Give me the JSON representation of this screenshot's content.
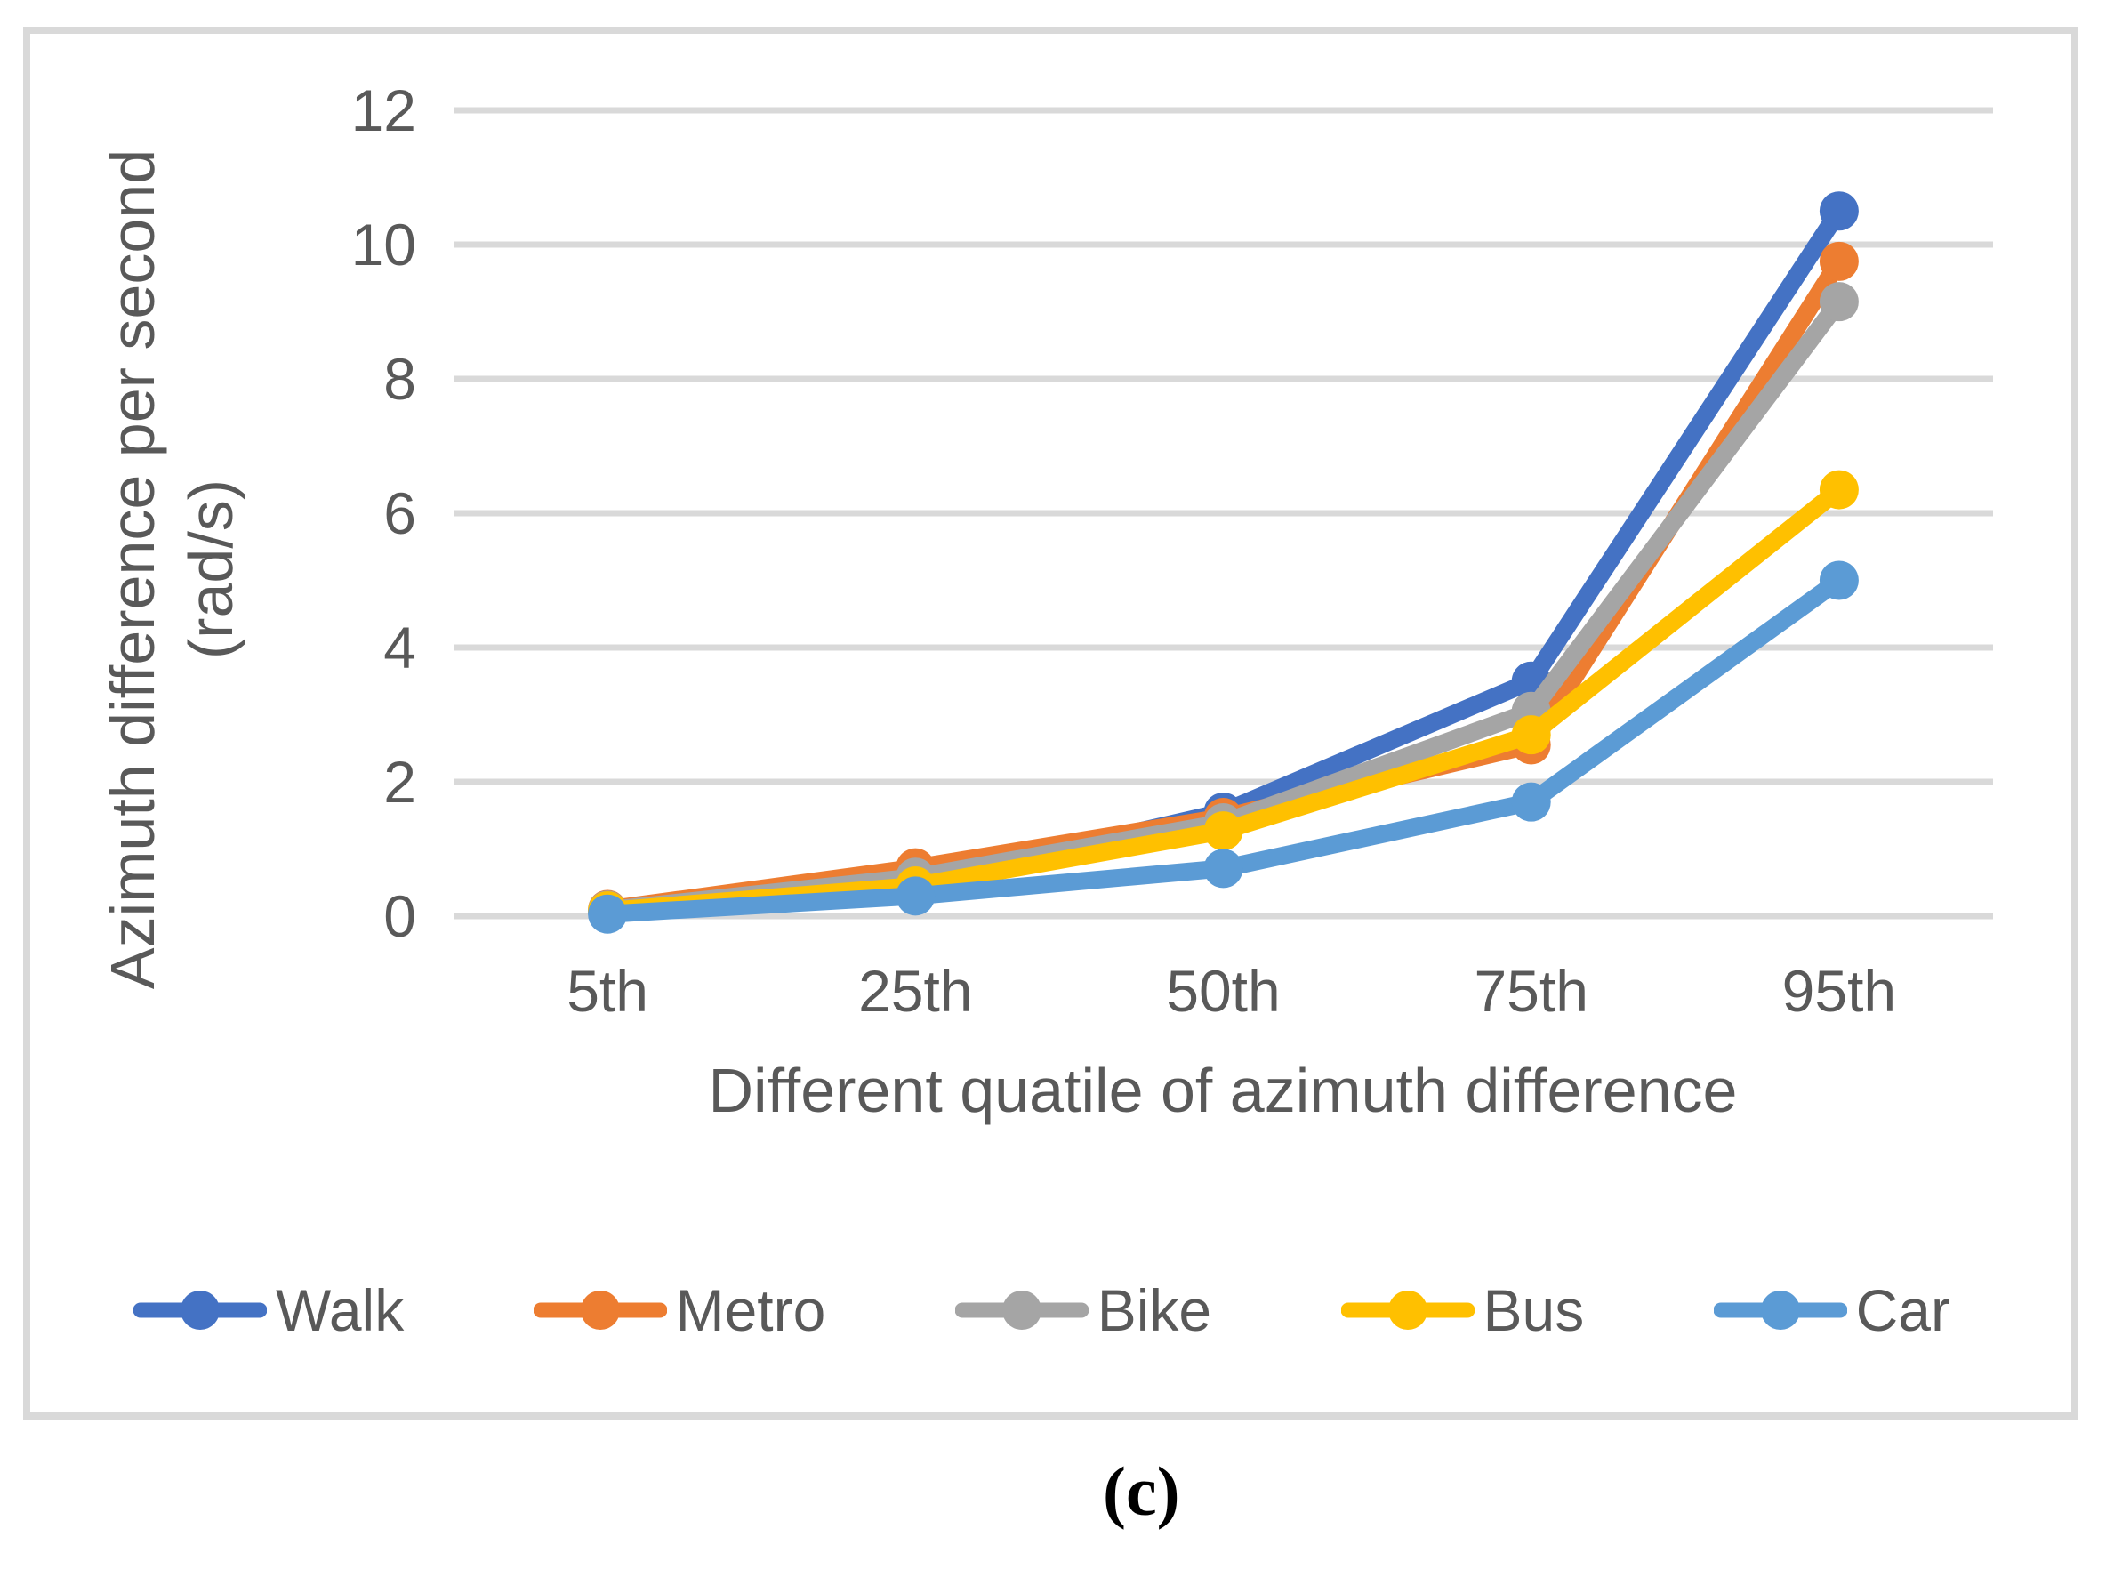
{
  "figure": {
    "caption": "(c)"
  },
  "chart_data": {
    "type": "line",
    "categories": [
      "5th",
      "25th",
      "50th",
      "75th",
      "95th"
    ],
    "series": [
      {
        "name": "Walk",
        "color": "#4472C4",
        "values": [
          0.06,
          0.5,
          1.55,
          3.5,
          10.5
        ]
      },
      {
        "name": "Metro",
        "color": "#ED7D31",
        "values": [
          0.1,
          0.72,
          1.47,
          2.55,
          9.75
        ]
      },
      {
        "name": "Bike",
        "color": "#A5A5A5",
        "values": [
          0.09,
          0.58,
          1.39,
          3.05,
          9.15
        ]
      },
      {
        "name": "Bus",
        "color": "#FFC000",
        "values": [
          0.08,
          0.45,
          1.27,
          2.7,
          6.35
        ]
      },
      {
        "name": "Car",
        "color": "#5B9BD5",
        "values": [
          0.03,
          0.3,
          0.71,
          1.7,
          5.0
        ]
      }
    ],
    "xlabel": "Different quatile of azimuth difference",
    "ylabel_line1": "Azimuth difference per second",
    "ylabel_line2": "(rad/s)",
    "y_ticks": [
      "12",
      "10",
      "8",
      "6",
      "4",
      "2",
      "0"
    ],
    "ylim": [
      0,
      12
    ],
    "y_tick_step": 2,
    "grid": "horizontal",
    "legend_position": "bottom",
    "gridline_color": "#D9D9D9",
    "text_color": "#595959",
    "marker": "circle"
  }
}
